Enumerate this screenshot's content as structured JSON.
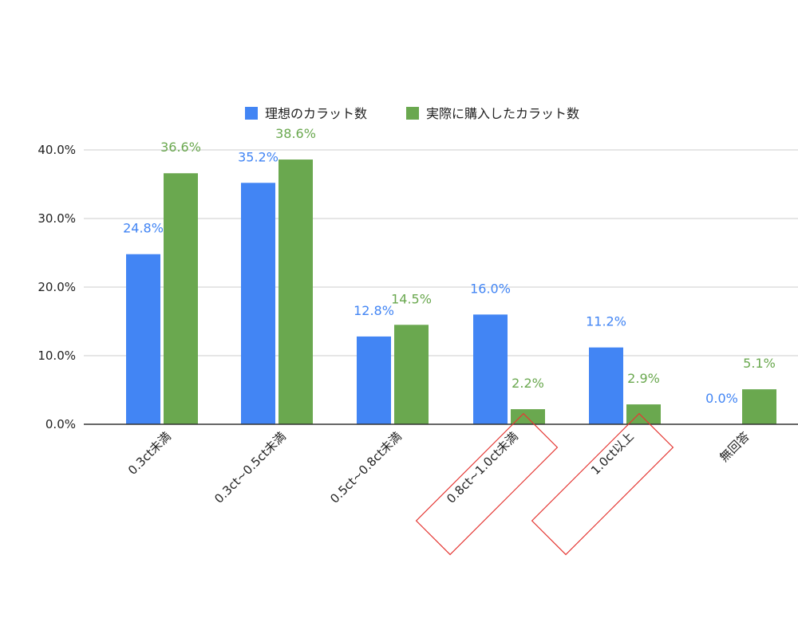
{
  "chart_data": {
    "type": "bar",
    "title": "",
    "xlabel": "",
    "ylabel": "",
    "ylim": [
      0,
      40
    ],
    "yticks": [
      "0.0%",
      "10.0%",
      "20.0%",
      "30.0%",
      "40.0%"
    ],
    "grid": true,
    "legend_position": "top",
    "categories": [
      "0.3ct未満",
      "0.3ct~0.5ct未満",
      "0.5ct~0.8ct未満",
      "0.8ct~1.0ct未満",
      "1.0ct以上",
      "無回答"
    ],
    "highlighted_categories": [
      "0.8ct~1.0ct未満",
      "1.0ct以上"
    ],
    "series": [
      {
        "name": "理想のカラット数",
        "color": "#4285f4",
        "values": [
          24.8,
          35.2,
          12.8,
          16.0,
          11.2,
          0.0
        ],
        "labels": [
          "24.8%",
          "35.2%",
          "12.8%",
          "16.0%",
          "11.2%",
          "0.0%"
        ]
      },
      {
        "name": "実際に購入したカラット数",
        "color": "#6aa84f",
        "values": [
          36.6,
          38.6,
          14.5,
          2.2,
          2.9,
          5.1
        ],
        "labels": [
          "36.6%",
          "38.6%",
          "14.5%",
          "2.2%",
          "2.9%",
          "5.1%"
        ]
      }
    ],
    "highlight_color": "#e53935"
  }
}
